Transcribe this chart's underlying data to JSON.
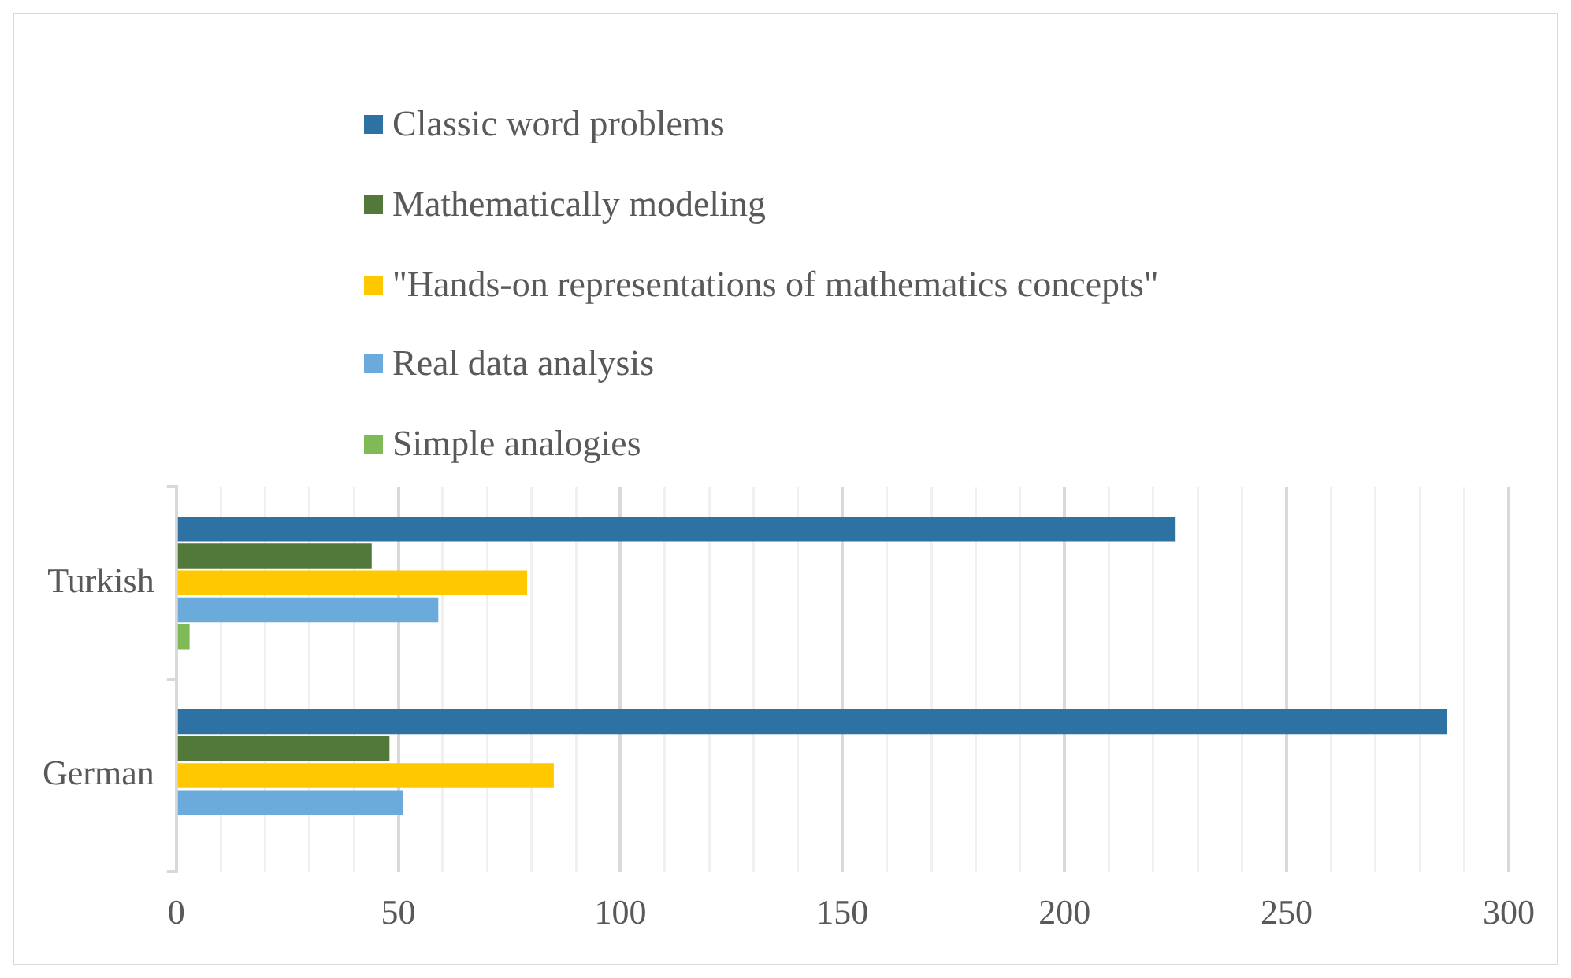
{
  "chart_data": {
    "type": "bar",
    "orientation": "horizontal",
    "categories": [
      "Turkish",
      "German"
    ],
    "series": [
      {
        "name": "Classic word problems",
        "color": "#2e72a3",
        "values": [
          225,
          286
        ]
      },
      {
        "name": "Mathematically modeling",
        "color": "#53793a",
        "values": [
          44,
          48
        ]
      },
      {
        "name": "\"Hands-on representations of mathematics concepts\"",
        "color": "#ffc800",
        "values": [
          79,
          85
        ]
      },
      {
        "name": "Real data analysis",
        "color": "#6aabdc",
        "values": [
          59,
          51
        ]
      },
      {
        "name": "Simple analogies",
        "color": "#80ba57",
        "values": [
          3,
          0
        ]
      }
    ],
    "xlim": [
      0,
      300
    ],
    "xticks": [
      0,
      {
        "value": 10,
        "label": null
      },
      {
        "value": 20,
        "label": null
      },
      {
        "value": 30,
        "label": null
      },
      {
        "value": 40,
        "label": null
      },
      50,
      {
        "value": 60,
        "label": null
      },
      {
        "value": 70,
        "label": null
      },
      {
        "value": 80,
        "label": null
      },
      {
        "value": 90,
        "label": null
      },
      100,
      {
        "value": 110,
        "label": null
      },
      {
        "value": 120,
        "label": null
      },
      {
        "value": 130,
        "label": null
      },
      {
        "value": 140,
        "label": null
      },
      150,
      {
        "value": 160,
        "label": null
      },
      {
        "value": 170,
        "label": null
      },
      {
        "value": 180,
        "label": null
      },
      {
        "value": 190,
        "label": null
      },
      200,
      {
        "value": 210,
        "label": null
      },
      {
        "value": 220,
        "label": null
      },
      {
        "value": 230,
        "label": null
      },
      {
        "value": 240,
        "label": null
      },
      250,
      {
        "value": 260,
        "label": null
      },
      {
        "value": 270,
        "label": null
      },
      {
        "value": 280,
        "label": null
      },
      {
        "value": 290,
        "label": null
      },
      300
    ],
    "grid": "x",
    "legend": "top"
  }
}
